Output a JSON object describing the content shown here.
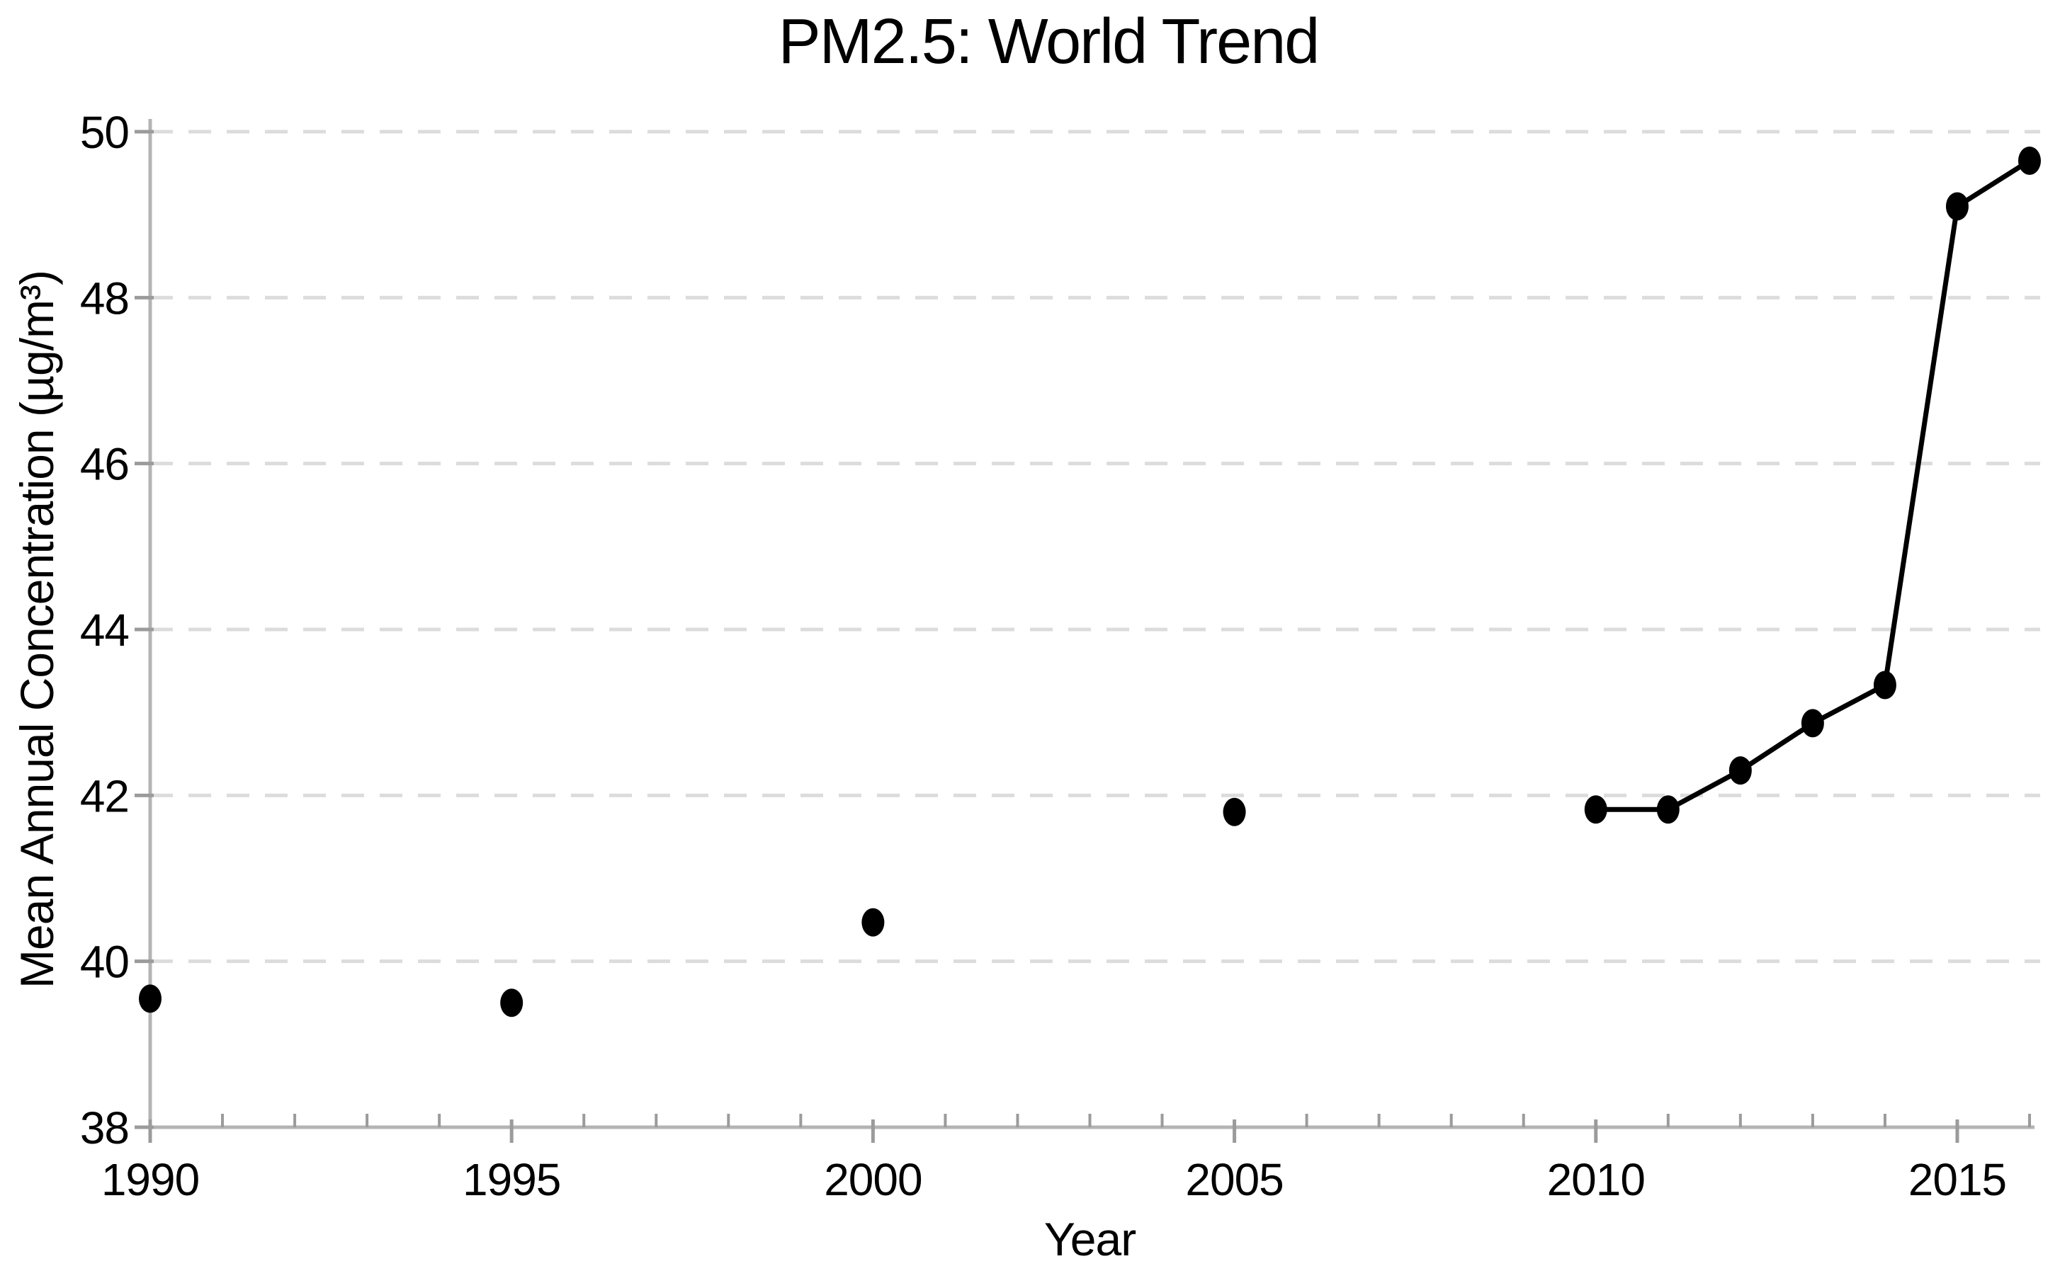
{
  "chart_data": {
    "type": "line",
    "title": "PM2.5: World Trend",
    "xlabel": "Year",
    "ylabel": "Mean Annual Concentration (µg/m³)",
    "xlim": [
      1990,
      2016
    ],
    "ylim": [
      38,
      50
    ],
    "y_ticks": [
      38,
      40,
      42,
      44,
      46,
      48,
      50
    ],
    "x_major_ticks": [
      1990,
      1995,
      2000,
      2005,
      2010,
      2015
    ],
    "x_minor_tick_step": 1,
    "grid": "horizontal-dashed",
    "legend_position": "none",
    "series": [
      {
        "name": "World",
        "points": [
          [
            1990,
            39.55
          ],
          [
            1995,
            39.5
          ],
          [
            2000,
            40.47
          ],
          [
            2005,
            41.8
          ],
          [
            2010,
            41.83
          ],
          [
            2011,
            41.83
          ],
          [
            2012,
            42.3
          ],
          [
            2013,
            42.87
          ],
          [
            2014,
            43.33
          ],
          [
            2015,
            49.1
          ],
          [
            2016,
            49.65
          ]
        ],
        "line_between_x": [
          2010,
          2016
        ],
        "marker": "filled-circle"
      }
    ],
    "colors": {
      "marker": "#000000",
      "line": "#000000",
      "gridline": "#dcdcdc",
      "axis": "#b4b4b4",
      "tick": "#9b9b9b",
      "text": "#000000",
      "background": "#ffffff"
    }
  }
}
